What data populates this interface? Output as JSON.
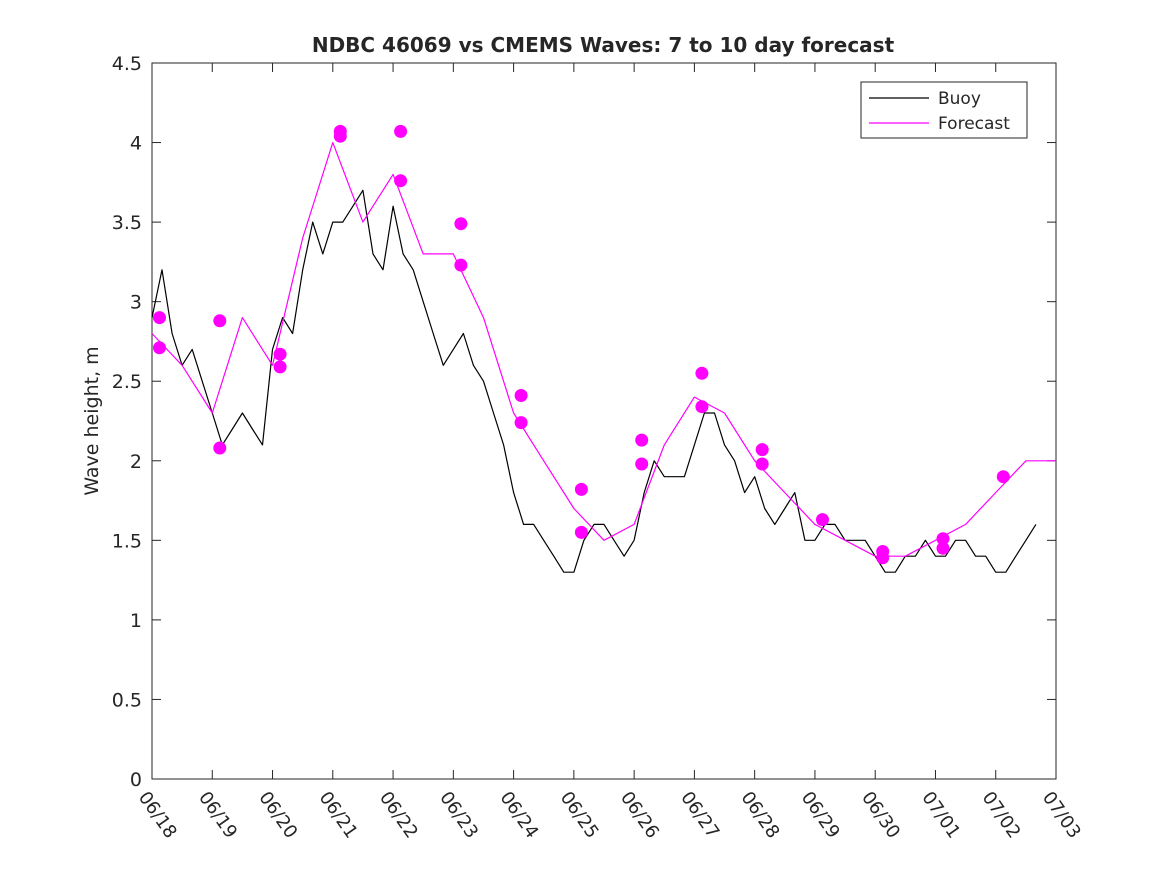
{
  "chart_data": {
    "type": "line",
    "title": "NDBC 46069 vs CMEMS Waves: 7 to 10 day forecast",
    "xlabel": "",
    "ylabel": "Wave height, m",
    "x_unit": "date (mm/dd)",
    "xlim": [
      "06/18",
      "07/03"
    ],
    "ylim": [
      0,
      4.5
    ],
    "x_tick_labels": [
      "06/18",
      "06/19",
      "06/20",
      "06/21",
      "06/22",
      "06/23",
      "06/24",
      "06/25",
      "06/26",
      "06/27",
      "06/28",
      "06/29",
      "06/30",
      "07/01",
      "07/02",
      "07/03"
    ],
    "y_tick_labels": [
      "0",
      "0.5",
      "1",
      "1.5",
      "2",
      "2.5",
      "3",
      "3.5",
      "4",
      "4.5"
    ],
    "y_ticks": [
      0,
      0.5,
      1,
      1.5,
      2,
      2.5,
      3,
      3.5,
      4,
      4.5
    ],
    "grid": false,
    "legend": {
      "position": "top-right",
      "entries": [
        "Buoy",
        "Forecast"
      ]
    },
    "colors": {
      "buoy": "#000000",
      "forecast": "#ff00ff",
      "axes": "#262626"
    },
    "series": [
      {
        "name": "Buoy",
        "color": "#000000",
        "x": [
          "06/18",
          "06/18",
          "06/18",
          "06/18",
          "06/18",
          "06/18",
          "06/19",
          "06/19",
          "06/19",
          "06/19",
          "06/19",
          "06/19",
          "06/20",
          "06/20",
          "06/20",
          "06/20",
          "06/20",
          "06/20",
          "06/21",
          "06/21",
          "06/21",
          "06/21",
          "06/21",
          "06/21",
          "06/22",
          "06/22",
          "06/22",
          "06/22",
          "06/22",
          "06/22",
          "06/23",
          "06/23",
          "06/23",
          "06/23",
          "06/23",
          "06/23",
          "06/24",
          "06/24",
          "06/24",
          "06/24",
          "06/24",
          "06/24",
          "06/25",
          "06/25",
          "06/25",
          "06/25",
          "06/25",
          "06/25",
          "06/26",
          "06/26",
          "06/26",
          "06/26",
          "06/26",
          "06/26",
          "06/27",
          "06/27",
          "06/27",
          "06/27",
          "06/27",
          "06/27",
          "06/28",
          "06/28",
          "06/28",
          "06/28",
          "06/28",
          "06/28",
          "06/29",
          "06/29",
          "06/29",
          "06/29",
          "06/29",
          "06/29",
          "06/30",
          "06/30",
          "06/30",
          "06/30",
          "06/30",
          "06/30",
          "07/01",
          "07/01",
          "07/01",
          "07/01",
          "07/01",
          "07/01",
          "07/02",
          "07/02",
          "07/02",
          "07/02",
          "07/02"
        ],
        "x_hour": [
          0,
          4,
          8,
          12,
          16,
          20,
          0,
          4,
          8,
          12,
          16,
          20,
          0,
          4,
          8,
          12,
          16,
          20,
          0,
          4,
          8,
          12,
          16,
          20,
          0,
          4,
          8,
          12,
          16,
          20,
          0,
          4,
          8,
          12,
          16,
          20,
          0,
          4,
          8,
          12,
          16,
          20,
          0,
          4,
          8,
          12,
          16,
          20,
          0,
          4,
          8,
          12,
          16,
          20,
          0,
          4,
          8,
          12,
          16,
          20,
          0,
          4,
          8,
          12,
          16,
          20,
          0,
          4,
          8,
          12,
          16,
          20,
          0,
          4,
          8,
          12,
          16,
          20,
          0,
          4,
          8,
          12,
          16,
          20,
          0,
          4,
          8,
          12,
          16
        ],
        "y": [
          2.9,
          3.2,
          2.8,
          2.6,
          2.7,
          2.5,
          2.3,
          2.1,
          2.2,
          2.3,
          2.2,
          2.1,
          2.7,
          2.9,
          2.8,
          3.2,
          3.5,
          3.3,
          3.5,
          3.5,
          3.6,
          3.7,
          3.3,
          3.2,
          3.6,
          3.3,
          3.2,
          3.0,
          2.8,
          2.6,
          2.7,
          2.8,
          2.6,
          2.5,
          2.3,
          2.1,
          1.8,
          1.6,
          1.6,
          1.5,
          1.4,
          1.3,
          1.3,
          1.5,
          1.6,
          1.6,
          1.5,
          1.4,
          1.5,
          1.8,
          2.0,
          1.9,
          1.9,
          1.9,
          2.1,
          2.3,
          2.3,
          2.1,
          2.0,
          1.8,
          1.9,
          1.7,
          1.6,
          1.7,
          1.8,
          1.5,
          1.5,
          1.6,
          1.6,
          1.5,
          1.5,
          1.5,
          1.4,
          1.3,
          1.3,
          1.4,
          1.4,
          1.5,
          1.4,
          1.4,
          1.5,
          1.5,
          1.4,
          1.4,
          1.3,
          1.3,
          1.4,
          1.5,
          1.6
        ]
      },
      {
        "name": "Forecast",
        "color": "#ff00ff",
        "x": [
          "06/18",
          "06/18",
          "06/19",
          "06/19",
          "06/20",
          "06/20",
          "06/21",
          "06/21",
          "06/22",
          "06/22",
          "06/23",
          "06/23",
          "06/24",
          "06/24",
          "06/25",
          "06/25",
          "06/26",
          "06/26",
          "06/27",
          "06/27",
          "06/28",
          "06/28",
          "06/29",
          "06/29",
          "06/30",
          "06/30",
          "07/01",
          "07/01",
          "07/02",
          "07/02",
          "07/03"
        ],
        "x_hour": [
          0,
          12,
          0,
          12,
          0,
          12,
          0,
          12,
          0,
          12,
          0,
          12,
          0,
          12,
          0,
          12,
          0,
          12,
          0,
          12,
          0,
          12,
          0,
          12,
          0,
          12,
          0,
          12,
          0,
          12,
          0
        ],
        "y": [
          2.8,
          2.6,
          2.3,
          2.9,
          2.6,
          3.4,
          4.0,
          3.5,
          3.8,
          3.3,
          3.3,
          2.9,
          2.3,
          2.0,
          1.7,
          1.5,
          1.6,
          2.1,
          2.4,
          2.3,
          2.0,
          1.8,
          1.6,
          1.5,
          1.4,
          1.4,
          1.5,
          1.6,
          1.8,
          2.0,
          2.0
        ]
      }
    ],
    "markers": {
      "name": "Forecast",
      "shape": "filled circle",
      "color": "#ff00ff",
      "points": [
        {
          "x": "06/18",
          "y": 2.9
        },
        {
          "x": "06/18",
          "y": 2.71
        },
        {
          "x": "06/19",
          "y": 2.88
        },
        {
          "x": "06/19",
          "y": 2.08
        },
        {
          "x": "06/20",
          "y": 2.67
        },
        {
          "x": "06/20",
          "y": 2.59
        },
        {
          "x": "06/21",
          "y": 4.07
        },
        {
          "x": "06/21",
          "y": 4.04
        },
        {
          "x": "06/22",
          "y": 4.07
        },
        {
          "x": "06/22",
          "y": 3.76
        },
        {
          "x": "06/23",
          "y": 3.49
        },
        {
          "x": "06/23",
          "y": 3.23
        },
        {
          "x": "06/24",
          "y": 2.41
        },
        {
          "x": "06/24",
          "y": 2.24
        },
        {
          "x": "06/25",
          "y": 1.82
        },
        {
          "x": "06/25",
          "y": 1.55
        },
        {
          "x": "06/26",
          "y": 2.13
        },
        {
          "x": "06/26",
          "y": 1.98
        },
        {
          "x": "06/27",
          "y": 2.55
        },
        {
          "x": "06/27",
          "y": 2.34
        },
        {
          "x": "06/28",
          "y": 2.07
        },
        {
          "x": "06/28",
          "y": 1.98
        },
        {
          "x": "06/29",
          "y": 1.63
        },
        {
          "x": "06/30",
          "y": 1.43
        },
        {
          "x": "06/30",
          "y": 1.39
        },
        {
          "x": "07/01",
          "y": 1.51
        },
        {
          "x": "07/01",
          "y": 1.45
        },
        {
          "x": "07/02",
          "y": 1.9
        }
      ]
    }
  }
}
